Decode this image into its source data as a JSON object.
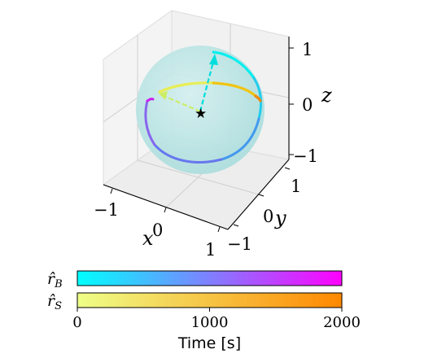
{
  "chart_data": {
    "type": "line",
    "subtype": "3d-trajectories-on-unit-sphere",
    "title": "",
    "axes": {
      "x": {
        "label": "x",
        "ticks": [
          "−1",
          "0",
          "1"
        ],
        "range": [
          -1,
          1
        ]
      },
      "y": {
        "label": "y",
        "ticks": [
          "−1",
          "0",
          "1"
        ],
        "range": [
          -1,
          1
        ]
      },
      "z": {
        "label": "z",
        "ticks": [
          "−1",
          "0",
          "1"
        ],
        "range": [
          -1,
          1
        ]
      }
    },
    "grid": true,
    "sphere": {
      "radius": 1,
      "color": "#b6e2e2"
    },
    "origin_marker": "star",
    "series": [
      {
        "name": "r̂B",
        "colormap": [
          "#00ffff",
          "#ff00ff"
        ],
        "description_points_xyz": [
          [
            0.0,
            0.7,
            0.8
          ],
          [
            0.5,
            0.6,
            0.5
          ],
          [
            0.7,
            0.3,
            0.1
          ],
          [
            0.6,
            0.0,
            -0.6
          ],
          [
            0.0,
            -0.4,
            -0.9
          ],
          [
            -0.5,
            -0.6,
            -0.4
          ],
          [
            -0.75,
            -0.4,
            0.2
          ]
        ]
      },
      {
        "name": "r̂S",
        "colormap": [
          "#eeff88",
          "#ff8800"
        ],
        "description_points_xyz": [
          [
            0.4,
            -0.7,
            0.5
          ],
          [
            0.2,
            -0.3,
            0.75
          ],
          [
            -0.1,
            0.3,
            0.8
          ],
          [
            -0.4,
            0.8,
            0.45
          ]
        ]
      }
    ],
    "arrows": [
      {
        "series": "r̂B",
        "color": "#00dddd"
      },
      {
        "series": "r̂S",
        "color": "#ccee66"
      }
    ],
    "colorbars": [
      {
        "label": "r̂B",
        "label_main": "r̂",
        "label_sub": "B",
        "range": [
          0,
          2000
        ],
        "colors": [
          "#00ffff",
          "#ff00ff"
        ]
      },
      {
        "label": "r̂S",
        "label_main": "r̂",
        "label_sub": "S",
        "range": [
          0,
          2000
        ],
        "colors": [
          "#eeff88",
          "#ff8800"
        ]
      }
    ],
    "colorbar_axis": {
      "label": "Time [s]",
      "ticks": [
        "0",
        "1000",
        "2000"
      ],
      "tick_values": [
        0,
        1000,
        2000
      ]
    }
  }
}
